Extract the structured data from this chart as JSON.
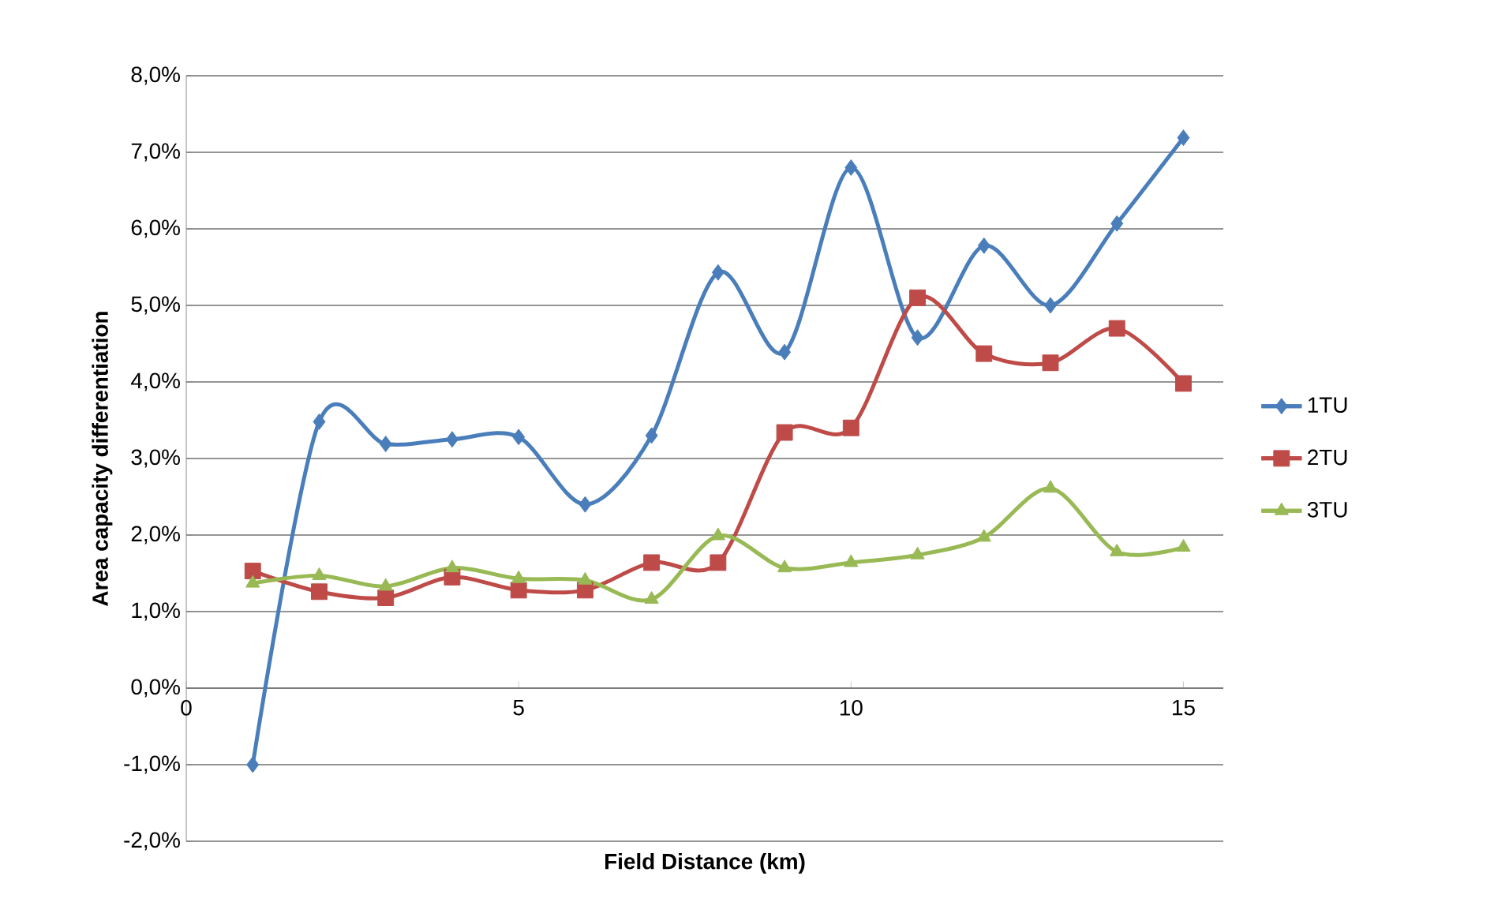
{
  "chart_data": {
    "type": "line",
    "xlabel": "Field Distance (km)",
    "ylabel": "Area capacity differentiation",
    "x": [
      1,
      2,
      3,
      4,
      5,
      6,
      7,
      8,
      9,
      10,
      11,
      12,
      13,
      14,
      15
    ],
    "series": [
      {
        "name": "1TU",
        "color": "#4a7ebb",
        "marker": "diamond",
        "values": [
          -1.0,
          3.48,
          3.19,
          3.25,
          3.28,
          2.4,
          3.3,
          5.43,
          4.39,
          6.8,
          4.58,
          5.78,
          5.0,
          6.07,
          7.19
        ]
      },
      {
        "name": "2TU",
        "color": "#be4b48",
        "marker": "square",
        "values": [
          1.53,
          1.26,
          1.18,
          1.45,
          1.28,
          1.28,
          1.64,
          1.64,
          3.34,
          3.4,
          5.1,
          4.37,
          4.25,
          4.7,
          3.98
        ]
      },
      {
        "name": "3TU",
        "color": "#98b954",
        "marker": "triangle",
        "values": [
          1.37,
          1.47,
          1.33,
          1.57,
          1.43,
          1.41,
          1.16,
          1.99,
          1.57,
          1.64,
          1.74,
          1.97,
          2.61,
          1.78,
          1.84
        ]
      }
    ],
    "xlim": [
      0,
      15.6
    ],
    "xticks": [
      0,
      5,
      10,
      15
    ],
    "ylim": [
      -2,
      8
    ],
    "yticks": [
      {
        "value": -2,
        "label": "-2,0%"
      },
      {
        "value": -1,
        "label": "-1,0%"
      },
      {
        "value": 0,
        "label": "0,0%"
      },
      {
        "value": 1,
        "label": "1,0%"
      },
      {
        "value": 2,
        "label": "2,0%"
      },
      {
        "value": 3,
        "label": "3,0%"
      },
      {
        "value": 4,
        "label": "4,0%"
      },
      {
        "value": 5,
        "label": "5,0%"
      },
      {
        "value": 6,
        "label": "6,0%"
      },
      {
        "value": 7,
        "label": "7,0%"
      },
      {
        "value": 8,
        "label": "8,0%"
      }
    ],
    "grid": "y",
    "legend": "right",
    "line_style": "solid"
  }
}
